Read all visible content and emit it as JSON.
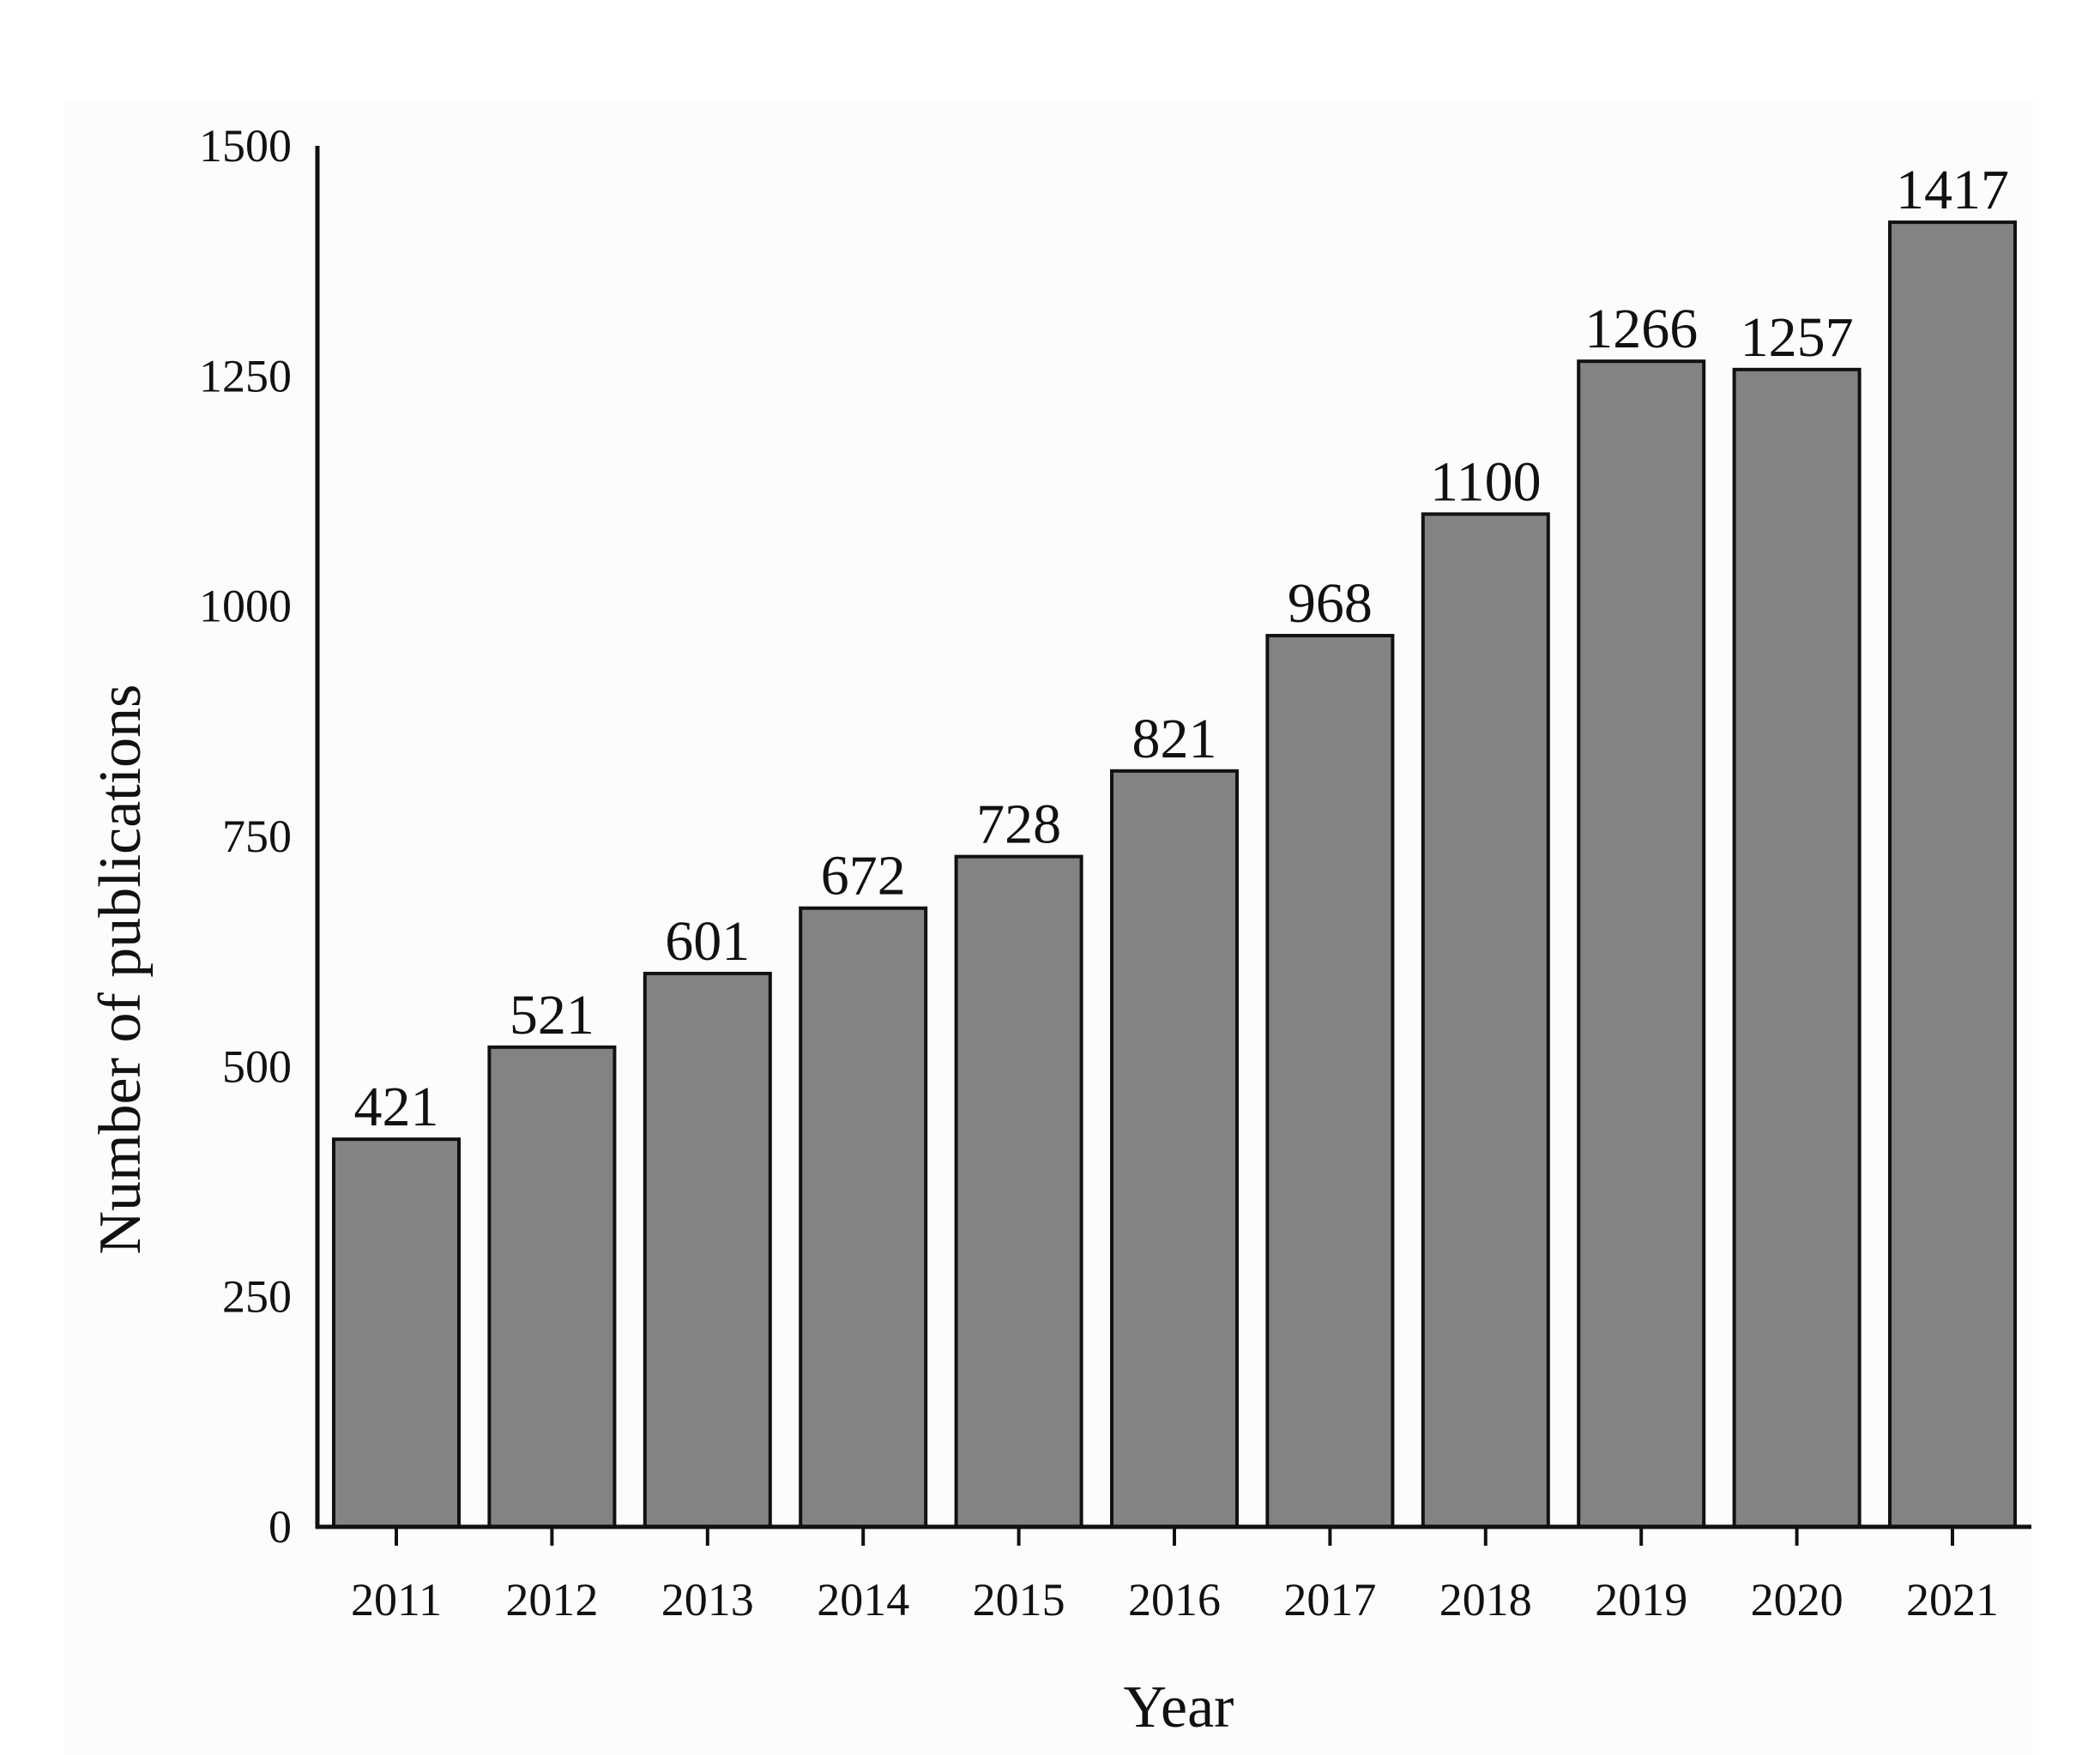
{
  "chart_data": {
    "type": "bar",
    "categories": [
      "2011",
      "2012",
      "2013",
      "2014",
      "2015",
      "2016",
      "2017",
      "2018",
      "2019",
      "2020",
      "2021"
    ],
    "values": [
      421,
      521,
      601,
      672,
      728,
      821,
      968,
      1100,
      1266,
      1257,
      1417
    ],
    "data_labels": [
      "421",
      "521",
      "601",
      "672",
      "728",
      "821",
      "968",
      "1100",
      "1266",
      "1257",
      "1417"
    ],
    "title": "",
    "xlabel": "Year",
    "ylabel": "Number of publications",
    "ylim": [
      0,
      1500
    ],
    "yticks": [
      "0",
      "250",
      "500",
      "750",
      "1000",
      "1250",
      "1500"
    ],
    "grid": false,
    "legend": "none",
    "colors": {
      "bar_fill": "#838383",
      "bar_stroke": "#111111",
      "axis": "#111111",
      "panel_background": "#fcfcfc"
    }
  }
}
